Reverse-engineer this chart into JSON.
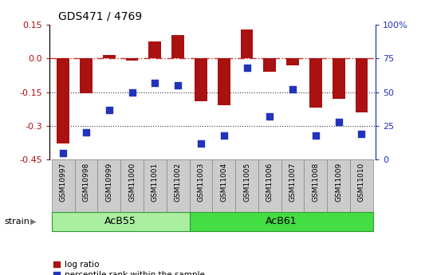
{
  "title": "GDS471 / 4769",
  "samples": [
    "GSM10997",
    "GSM10998",
    "GSM10999",
    "GSM11000",
    "GSM11001",
    "GSM11002",
    "GSM11003",
    "GSM11004",
    "GSM11005",
    "GSM11006",
    "GSM11007",
    "GSM11008",
    "GSM11009",
    "GSM11010"
  ],
  "log_ratio": [
    -0.38,
    -0.155,
    0.015,
    -0.01,
    0.075,
    0.105,
    -0.19,
    -0.21,
    0.13,
    -0.06,
    -0.03,
    -0.22,
    -0.18,
    -0.24
  ],
  "percentile": [
    5,
    20,
    37,
    50,
    57,
    55,
    12,
    18,
    68,
    32,
    52,
    18,
    28,
    19
  ],
  "groups": [
    {
      "label": "AcB55",
      "start": 0,
      "end": 5,
      "color": "#aaeea0"
    },
    {
      "label": "AcB61",
      "start": 6,
      "end": 13,
      "color": "#44dd44"
    }
  ],
  "ylim_left": [
    -0.45,
    0.15
  ],
  "ylim_right": [
    0,
    100
  ],
  "yticks_left": [
    -0.45,
    -0.3,
    -0.15,
    0.0,
    0.15
  ],
  "yticks_right": [
    0,
    25,
    50,
    75,
    100
  ],
  "bar_color": "#AA1111",
  "scatter_color": "#2233BB",
  "hline_color": "#CC3333",
  "dot_line_color": "#333333",
  "bg_color": "#FFFFFF",
  "bar_width": 0.55,
  "scatter_size": 40,
  "legend_items": [
    "log ratio",
    "percentile rank within the sample"
  ],
  "strain_label": "strain",
  "title_fontsize": 10,
  "tick_fontsize": 8,
  "label_fontsize": 6.5,
  "group_fontsize": 9
}
